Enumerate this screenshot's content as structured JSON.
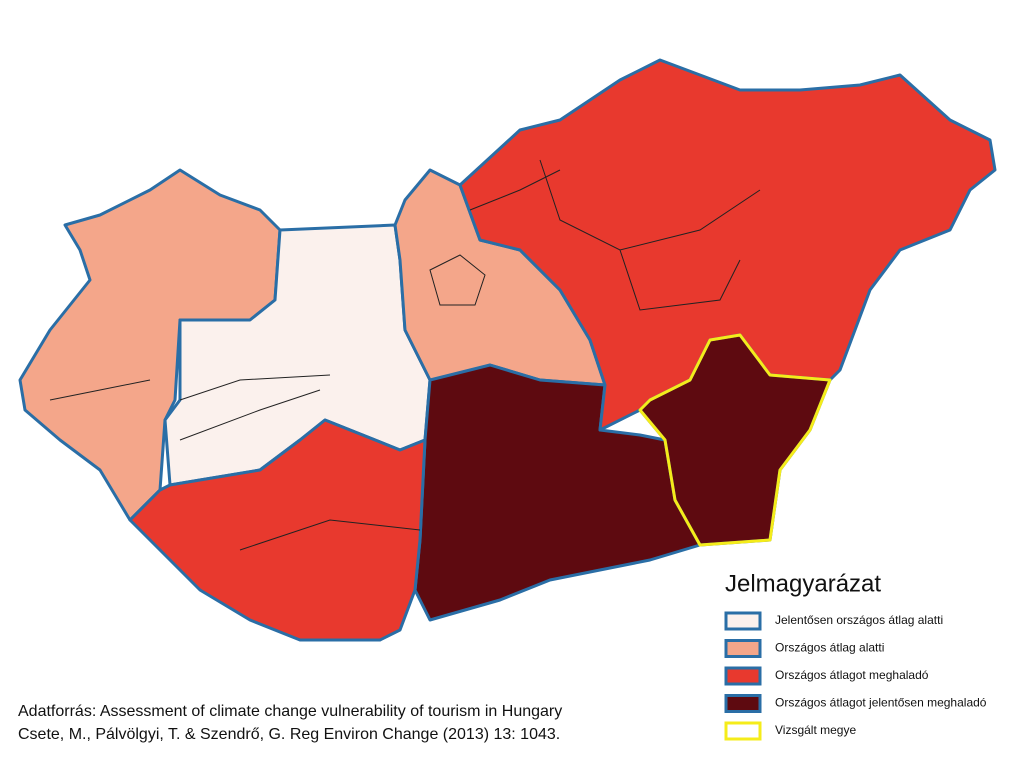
{
  "legend": {
    "title": "Jelmagyarázat",
    "items": [
      {
        "label": "Jelentősen országos átlag alatti",
        "fill": "#fbf1ed",
        "stroke": "#2a6ea6"
      },
      {
        "label": "Országos átlag alatti",
        "fill": "#f4a68a",
        "stroke": "#2a6ea6"
      },
      {
        "label": "Országos átlagot meghaladó",
        "fill": "#e8392e",
        "stroke": "#2a6ea6"
      },
      {
        "label": "Országos átlagot jelentősen meghaladó",
        "fill": "#5e0a10",
        "stroke": "#2a6ea6"
      },
      {
        "label": "Vizsgált megye",
        "fill": "#ffffff",
        "stroke": "#f5ec1a"
      }
    ]
  },
  "source": {
    "lines": [
      "Adatforrás: Assessment of climate change vulnerability of tourism in Hungary",
      "Csete, M., Pálvölgyi, T. & Szendrő, G. Reg Environ Change (2013) 13: 1043."
    ]
  }
}
